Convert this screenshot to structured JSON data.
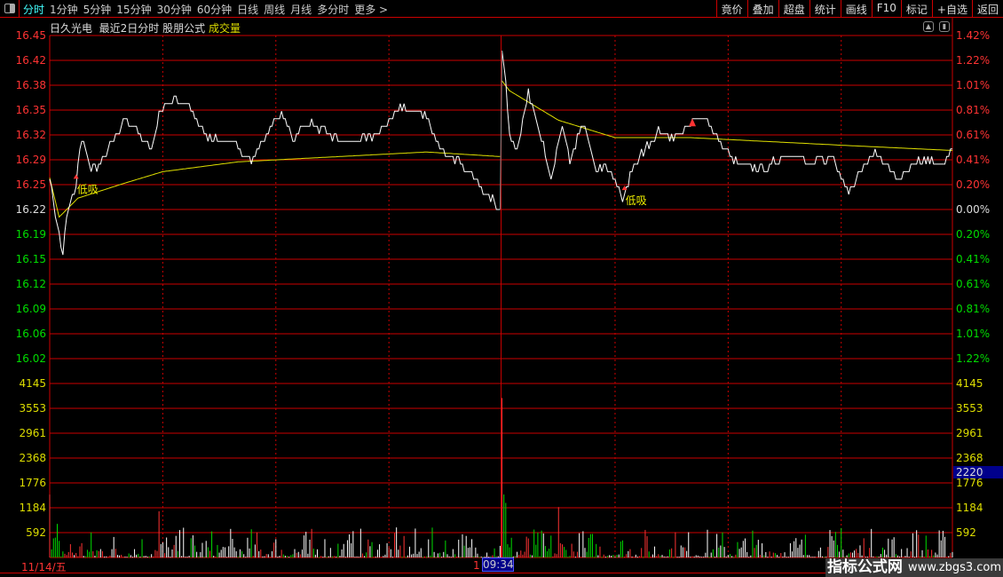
{
  "toolbar": {
    "periods": [
      "分时",
      "1分钟",
      "5分钟",
      "15分钟",
      "30分钟",
      "60分钟",
      "日线",
      "周线",
      "月线",
      "多分时",
      "更多 >"
    ],
    "active": 0,
    "right_buttons": [
      "竟价",
      "叠加",
      "超盘",
      "统计",
      "画线",
      "F10",
      "标记",
      "+自选",
      "返回"
    ]
  },
  "subtitle": {
    "stock": "日久光电",
    "mode": "最近2日分时",
    "formula": "股朋公式",
    "indicator": "成交量"
  },
  "icons": [
    "pin-icon",
    "panel-toggle-icon"
  ],
  "colors": {
    "up": "#ff3333",
    "down": "#00dd00",
    "flat": "#ffffff",
    "grid": "#cc0000",
    "avg": "#e0e000",
    "price": "#ffffff"
  },
  "chart_data": {
    "type": "line",
    "price_axis_left": [
      "16.45",
      "16.42",
      "16.38",
      "16.35",
      "16.32",
      "16.29",
      "16.25",
      "16.22",
      "16.19",
      "16.15",
      "16.12",
      "16.09",
      "16.06",
      "16.02"
    ],
    "price_axis_right": [
      "1.42%",
      "1.22%",
      "1.01%",
      "0.81%",
      "0.61%",
      "0.41%",
      "0.20%",
      "0.00%",
      "0.20%",
      "0.41%",
      "0.61%",
      "0.81%",
      "1.01%",
      "1.22%"
    ],
    "volume_axis": [
      "4145",
      "3553",
      "2961",
      "2368",
      "1776",
      "1184",
      "592"
    ],
    "prev_close": 16.22,
    "ylim": [
      16.02,
      16.45
    ],
    "vol_max": 4145,
    "minutes": 480,
    "price": [
      [
        0,
        16.262
      ],
      [
        3,
        16.215
      ],
      [
        7,
        16.16
      ],
      [
        9,
        16.21
      ],
      [
        14,
        16.256
      ],
      [
        17,
        16.317
      ],
      [
        21,
        16.279
      ],
      [
        25,
        16.273
      ],
      [
        33,
        16.308
      ],
      [
        40,
        16.339
      ],
      [
        47,
        16.325
      ],
      [
        54,
        16.296
      ],
      [
        58,
        16.348
      ],
      [
        66,
        16.366
      ],
      [
        75,
        16.356
      ],
      [
        82,
        16.319
      ],
      [
        96,
        16.308
      ],
      [
        108,
        16.285
      ],
      [
        115,
        16.319
      ],
      [
        123,
        16.348
      ],
      [
        129,
        16.314
      ],
      [
        139,
        16.337
      ],
      [
        150,
        16.314
      ],
      [
        162,
        16.308
      ],
      [
        174,
        16.319
      ],
      [
        186,
        16.356
      ],
      [
        198,
        16.348
      ],
      [
        207,
        16.302
      ],
      [
        219,
        16.279
      ],
      [
        231,
        16.244
      ],
      [
        239,
        16.22
      ],
      [
        240,
        16.426
      ],
      [
        242,
        16.389
      ],
      [
        244,
        16.319
      ],
      [
        248,
        16.296
      ],
      [
        254,
        16.377
      ],
      [
        259,
        16.331
      ],
      [
        266,
        16.262
      ],
      [
        272,
        16.331
      ],
      [
        276,
        16.279
      ],
      [
        283,
        16.337
      ],
      [
        290,
        16.273
      ],
      [
        297,
        16.273
      ],
      [
        304,
        16.233
      ],
      [
        309,
        16.273
      ],
      [
        315,
        16.296
      ],
      [
        323,
        16.325
      ],
      [
        332,
        16.314
      ],
      [
        346,
        16.348
      ],
      [
        356,
        16.308
      ],
      [
        365,
        16.279
      ],
      [
        379,
        16.273
      ],
      [
        391,
        16.296
      ],
      [
        403,
        16.279
      ],
      [
        415,
        16.29
      ],
      [
        424,
        16.244
      ],
      [
        438,
        16.298
      ],
      [
        450,
        16.262
      ],
      [
        464,
        16.287
      ],
      [
        473,
        16.279
      ],
      [
        479,
        16.298
      ]
    ],
    "avg_price": [
      [
        0,
        16.262
      ],
      [
        5,
        16.21
      ],
      [
        15,
        16.235
      ],
      [
        40,
        16.255
      ],
      [
        60,
        16.27
      ],
      [
        100,
        16.283
      ],
      [
        200,
        16.296
      ],
      [
        239,
        16.29
      ],
      [
        240,
        16.39
      ],
      [
        244,
        16.377
      ],
      [
        270,
        16.338
      ],
      [
        300,
        16.315
      ],
      [
        340,
        16.315
      ],
      [
        420,
        16.305
      ],
      [
        479,
        16.298
      ]
    ],
    "volume_spikes": [
      [
        0,
        1500
      ],
      [
        4,
        800
      ],
      [
        58,
        1100
      ],
      [
        240,
        3800
      ],
      [
        241,
        1500
      ],
      [
        242,
        1300
      ],
      [
        270,
        1200
      ],
      [
        420,
        700
      ],
      [
        460,
        650
      ]
    ],
    "annotations": [
      {
        "text": "低吸",
        "minute": 14
      },
      {
        "text": "低吸",
        "minute": 305
      }
    ],
    "date_label": "11/14/五",
    "cursor_time": "09:34",
    "cursor_prefix": "1",
    "cursor_volume": "2220"
  },
  "watermark": {
    "title": "指标公式网",
    "url": "www.zbgs3.com"
  }
}
